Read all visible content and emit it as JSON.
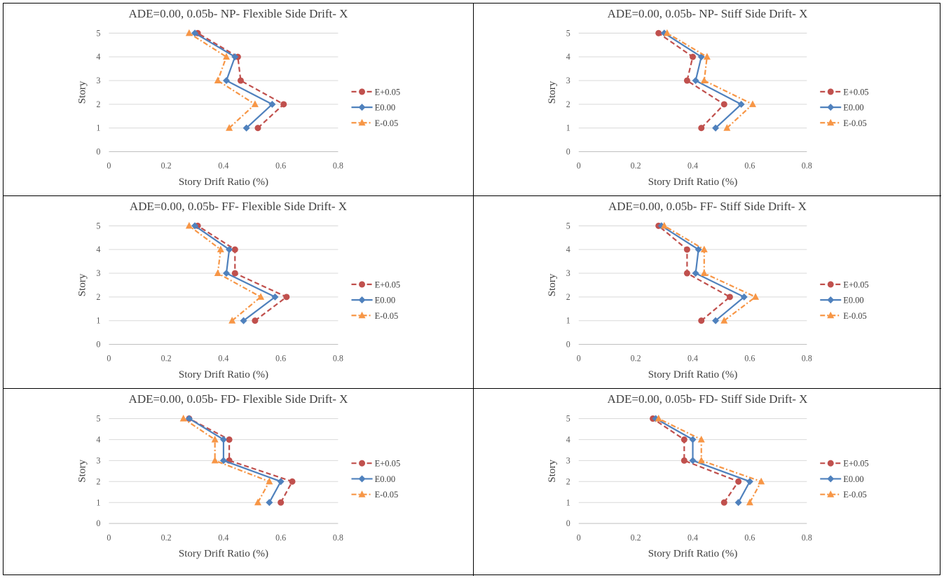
{
  "colors": {
    "e_plus": "#c0504d",
    "e_zero": "#4f81bd",
    "e_minus": "#f79646",
    "grid": "#d9d9d9",
    "axis": "#bfbfbf"
  },
  "chart_data": [
    {
      "type": "line",
      "title": "ADE=0.00, 0.05b- NP- Flexible Side Drift- X",
      "xlabel": "Story Drift Ratio (%)",
      "ylabel": "Story",
      "xlim": [
        0,
        0.8
      ],
      "ylim": [
        0,
        5
      ],
      "xticks": [
        "0",
        "0.2",
        "0.4",
        "0.6",
        "0.8"
      ],
      "yticks": [
        "0",
        "1",
        "2",
        "3",
        "4",
        "5"
      ],
      "grid": true,
      "legend": "right",
      "y": [
        1,
        2,
        3,
        4,
        5
      ],
      "series": [
        {
          "name": "E+0.05",
          "marker": "circle",
          "x": [
            0.52,
            0.61,
            0.46,
            0.45,
            0.31
          ]
        },
        {
          "name": "E0.00",
          "marker": "diamond",
          "x": [
            0.48,
            0.57,
            0.41,
            0.44,
            0.3
          ]
        },
        {
          "name": "E-0.05",
          "marker": "triangle",
          "x": [
            0.42,
            0.51,
            0.38,
            0.41,
            0.28
          ]
        }
      ]
    },
    {
      "type": "line",
      "title": "ADE=0.00, 0.05b- NP- Stiff Side Drift- X",
      "xlabel": "Story Drift Ratio (%)",
      "ylabel": "Story",
      "xlim": [
        0,
        0.8
      ],
      "ylim": [
        0,
        5
      ],
      "xticks": [
        "0",
        "0.2",
        "0.4",
        "0.6",
        "0.8"
      ],
      "yticks": [
        "0",
        "1",
        "2",
        "3",
        "4",
        "5"
      ],
      "grid": true,
      "legend": "right",
      "y": [
        1,
        2,
        3,
        4,
        5
      ],
      "series": [
        {
          "name": "E+0.05",
          "marker": "circle",
          "x": [
            0.43,
            0.51,
            0.38,
            0.4,
            0.28
          ]
        },
        {
          "name": "E0.00",
          "marker": "diamond",
          "x": [
            0.48,
            0.57,
            0.41,
            0.43,
            0.3
          ]
        },
        {
          "name": "E-0.05",
          "marker": "triangle",
          "x": [
            0.52,
            0.61,
            0.44,
            0.45,
            0.31
          ]
        }
      ]
    },
    {
      "type": "line",
      "title": "ADE=0.00, 0.05b- FF- Flexible Side Drift- X",
      "xlabel": "Story Drift Ratio (%)",
      "ylabel": "Story",
      "xlim": [
        0,
        0.8
      ],
      "ylim": [
        0,
        5
      ],
      "xticks": [
        "0",
        "0.2",
        "0.4",
        "0.6",
        "0.8"
      ],
      "yticks": [
        "0",
        "1",
        "2",
        "3",
        "4",
        "5"
      ],
      "grid": true,
      "legend": "right",
      "y": [
        1,
        2,
        3,
        4,
        5
      ],
      "series": [
        {
          "name": "E+0.05",
          "marker": "circle",
          "x": [
            0.51,
            0.62,
            0.44,
            0.44,
            0.31
          ]
        },
        {
          "name": "E0.00",
          "marker": "diamond",
          "x": [
            0.47,
            0.58,
            0.41,
            0.42,
            0.3
          ]
        },
        {
          "name": "E-0.05",
          "marker": "triangle",
          "x": [
            0.43,
            0.53,
            0.38,
            0.39,
            0.28
          ]
        }
      ]
    },
    {
      "type": "line",
      "title": "ADE=0.00, 0.05b- FF- Stiff Side Drift- X",
      "xlabel": "Story Drift Ratio (%)",
      "ylabel": "Story",
      "xlim": [
        0,
        0.8
      ],
      "ylim": [
        0,
        5
      ],
      "xticks": [
        "0",
        "0.2",
        "0.4",
        "0.6",
        "0.8"
      ],
      "yticks": [
        "0",
        "1",
        "2",
        "3",
        "4",
        "5"
      ],
      "grid": true,
      "legend": "right",
      "y": [
        1,
        2,
        3,
        4,
        5
      ],
      "series": [
        {
          "name": "E+0.05",
          "marker": "circle",
          "x": [
            0.43,
            0.53,
            0.38,
            0.38,
            0.28
          ]
        },
        {
          "name": "E0.00",
          "marker": "diamond",
          "x": [
            0.48,
            0.58,
            0.41,
            0.42,
            0.29
          ]
        },
        {
          "name": "E-0.05",
          "marker": "triangle",
          "x": [
            0.51,
            0.62,
            0.44,
            0.44,
            0.3
          ]
        }
      ]
    },
    {
      "type": "line",
      "title": "ADE=0.00, 0.05b- FD- Flexible Side Drift- X",
      "xlabel": "Story Drift Ratio (%)",
      "ylabel": "Story",
      "xlim": [
        0,
        0.8
      ],
      "ylim": [
        0,
        5
      ],
      "xticks": [
        "0",
        "0.2",
        "0.4",
        "0.6",
        "0.8"
      ],
      "yticks": [
        "0",
        "1",
        "2",
        "3",
        "4",
        "5"
      ],
      "grid": true,
      "legend": "right",
      "y": [
        1,
        2,
        3,
        4,
        5
      ],
      "series": [
        {
          "name": "E+0.05",
          "marker": "circle",
          "x": [
            0.6,
            0.64,
            0.42,
            0.42,
            0.28
          ]
        },
        {
          "name": "E0.00",
          "marker": "diamond",
          "x": [
            0.56,
            0.6,
            0.4,
            0.4,
            0.28
          ]
        },
        {
          "name": "E-0.05",
          "marker": "triangle",
          "x": [
            0.52,
            0.56,
            0.37,
            0.37,
            0.26
          ]
        }
      ]
    },
    {
      "type": "line",
      "title": "ADE=0.00, 0.05b- FD- Stiff Side Drift- X",
      "xlabel": "Story Drift Ratio (%)",
      "ylabel": "Story",
      "xlim": [
        0,
        0.8
      ],
      "ylim": [
        0,
        5
      ],
      "xticks": [
        "0",
        "0.2",
        "0.4",
        "0.6",
        "0.8"
      ],
      "yticks": [
        "0",
        "1",
        "2",
        "3",
        "4",
        "5"
      ],
      "grid": true,
      "legend": "right",
      "y": [
        1,
        2,
        3,
        4,
        5
      ],
      "series": [
        {
          "name": "E+0.05",
          "marker": "circle",
          "x": [
            0.51,
            0.56,
            0.37,
            0.37,
            0.26
          ]
        },
        {
          "name": "E0.00",
          "marker": "diamond",
          "x": [
            0.56,
            0.6,
            0.4,
            0.4,
            0.27
          ]
        },
        {
          "name": "E-0.05",
          "marker": "triangle",
          "x": [
            0.6,
            0.64,
            0.43,
            0.43,
            0.28
          ]
        }
      ]
    }
  ]
}
